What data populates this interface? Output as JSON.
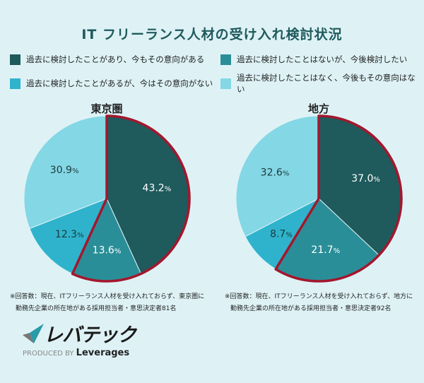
{
  "title": "IT フリーランス人材の受け入れ検討状況",
  "colors": {
    "background": "#def2f6",
    "highlight_outline": "#a3172d"
  },
  "legend": [
    {
      "label": "過去に検討したことがあり、今もその意向がある",
      "color": "#1f5a5c"
    },
    {
      "label": "過去に検討したことはないが、今後検討したい",
      "color": "#2a8e98"
    },
    {
      "label": "過去に検討したことがあるが、今はその意向がない",
      "color": "#2fb3cc"
    },
    {
      "label": "過去に検討したことはなく、今後もその意向はない",
      "color": "#84d7e4"
    }
  ],
  "chart_data": [
    {
      "type": "pie",
      "title": "東京圏",
      "start": "12 o'clock",
      "direction": "clockwise",
      "slices": [
        {
          "category": "過去に検討したことがあり、今もその意向がある",
          "value": 43.2,
          "label": "43.2",
          "color": "#1f5a5c",
          "highlighted": true
        },
        {
          "category": "過去に検討したことはないが、今後検討したい",
          "value": 13.6,
          "label": "13.6",
          "color": "#2a8e98",
          "highlighted": true
        },
        {
          "category": "過去に検討したことがあるが、今はその意向がない",
          "value": 12.3,
          "label": "12.3",
          "color": "#2fb3cc",
          "highlighted": false
        },
        {
          "category": "過去に検討したことはなく、今後もその意向はない",
          "value": 30.9,
          "label": "30.9",
          "color": "#84d7e4",
          "highlighted": false
        }
      ],
      "unit": "%",
      "note": [
        "※回答数：現在、ITフリーランス人材を受け入れておらず、東京圏に",
        "勤務先企業の所在地がある採用担当者・意思決定者81名"
      ]
    },
    {
      "type": "pie",
      "title": "地方",
      "start": "12 o'clock",
      "direction": "clockwise",
      "slices": [
        {
          "category": "過去に検討したことがあり、今もその意向がある",
          "value": 37.0,
          "label": "37.0",
          "color": "#1f5a5c",
          "highlighted": true
        },
        {
          "category": "過去に検討したことはないが、今後検討したい",
          "value": 21.7,
          "label": "21.7",
          "color": "#2a8e98",
          "highlighted": true
        },
        {
          "category": "過去に検討したことがあるが、今はその意向がない",
          "value": 8.7,
          "label": "8.7",
          "color": "#2fb3cc",
          "highlighted": false
        },
        {
          "category": "過去に検討したことはなく、今後もその意向はない",
          "value": 32.6,
          "label": "32.6",
          "color": "#84d7e4",
          "highlighted": false
        }
      ],
      "unit": "%",
      "note": [
        "※回答数：現在、ITフリーランス人材を受け入れておらず、地方に",
        "勤務先企業の所在地がある採用担当者・意思決定者92名"
      ]
    }
  ],
  "logo": {
    "name": "レバテック",
    "produced_by": "PRODUCED BY",
    "company": "Leverages"
  }
}
